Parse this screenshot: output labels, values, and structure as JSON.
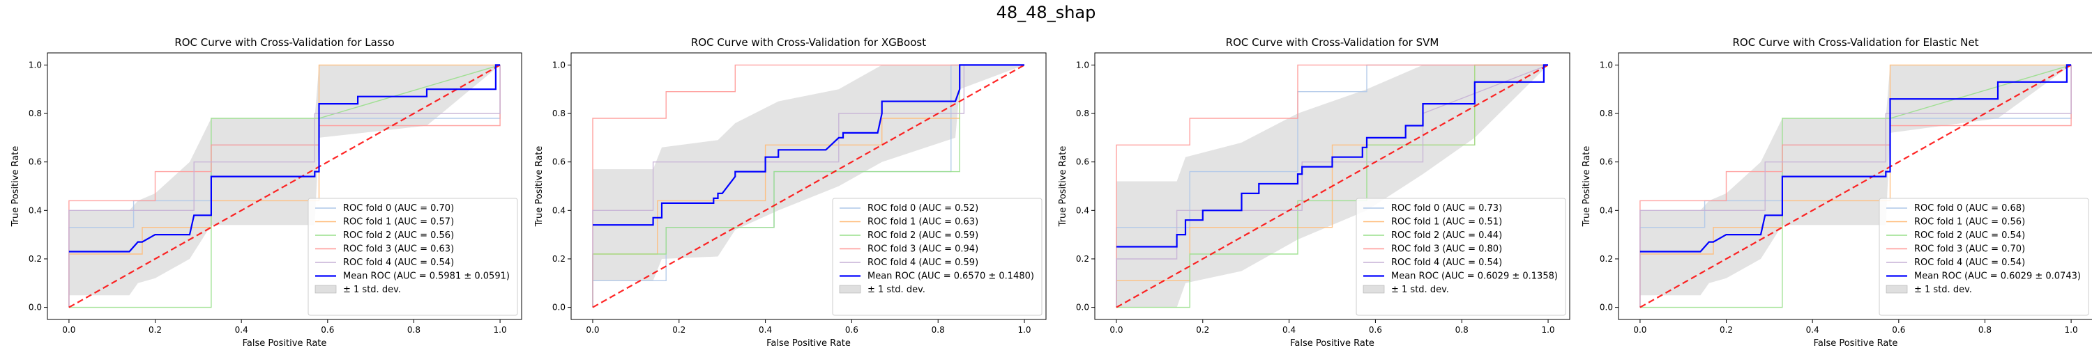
{
  "figure": {
    "title": "48_48_shap"
  },
  "chart_data": [
    {
      "type": "line",
      "title": "ROC Curve with Cross-Validation for Lasso",
      "xlabel": "False Positive Rate",
      "ylabel": "True Positive Rate",
      "xlim": [
        -0.05,
        1.05
      ],
      "ylim": [
        -0.05,
        1.05
      ],
      "xticks": [
        "0.0",
        "0.2",
        "0.4",
        "0.6",
        "0.8",
        "1.0"
      ],
      "yticks": [
        "0.0",
        "0.2",
        "0.4",
        "0.6",
        "0.8",
        "1.0"
      ],
      "legend_position": "lower right",
      "folds": [
        {
          "name": "ROC fold 0 (AUC = 0.70)",
          "color": "#aec7e8",
          "x": [
            0,
            0,
            0.15,
            0.15,
            0.33,
            0.33,
            0.58,
            0.58,
            1.0,
            1.0
          ],
          "y": [
            0,
            0.33,
            0.33,
            0.44,
            0.44,
            0.67,
            0.67,
            0.78,
            0.78,
            1.0
          ]
        },
        {
          "name": "ROC fold 1 (AUC = 0.57)",
          "color": "#ffbb78",
          "x": [
            0,
            0,
            0.17,
            0.17,
            0.33,
            0.33,
            0.58,
            0.58,
            1.0,
            1.0
          ],
          "y": [
            0,
            0.22,
            0.22,
            0.33,
            0.33,
            0.44,
            0.44,
            1.0,
            1.0,
            1.0
          ]
        },
        {
          "name": "ROC fold 2 (AUC = 0.56)",
          "color": "#98df8a",
          "x": [
            0,
            0,
            0.33,
            0.33,
            0.58,
            0.58,
            1.0
          ],
          "y": [
            0,
            0,
            0,
            0.78,
            0.78,
            0.78,
            1.0
          ]
        },
        {
          "name": "ROC fold 3 (AUC = 0.63)",
          "color": "#ff9896",
          "x": [
            0,
            0,
            0.2,
            0.2,
            0.33,
            0.33,
            0.58,
            0.58,
            1.0,
            1.0
          ],
          "y": [
            0,
            0.44,
            0.44,
            0.56,
            0.56,
            0.67,
            0.67,
            0.75,
            0.75,
            1.0
          ]
        },
        {
          "name": "ROC fold 4 (AUC = 0.54)",
          "color": "#c5b0d5",
          "x": [
            0,
            0,
            0.15,
            0.15,
            0.29,
            0.29,
            0.57,
            0.57,
            1.0,
            1.0
          ],
          "y": [
            0,
            0.4,
            0.4,
            0.4,
            0.4,
            0.6,
            0.6,
            0.8,
            0.8,
            1.0
          ]
        }
      ],
      "mean": {
        "name": "Mean ROC (AUC = 0.5981 ± 0.0591)",
        "color": "#0000ff",
        "x": [
          0,
          0.14,
          0.16,
          0.17,
          0.2,
          0.28,
          0.29,
          0.33,
          0.33,
          0.57,
          0.57,
          0.58,
          0.58,
          0.67,
          0.67,
          0.83,
          0.83,
          0.99,
          0.99,
          1.0
        ],
        "y": [
          0.23,
          0.23,
          0.27,
          0.27,
          0.3,
          0.3,
          0.38,
          0.38,
          0.54,
          0.54,
          0.56,
          0.56,
          0.84,
          0.84,
          0.87,
          0.87,
          0.9,
          0.9,
          1.0,
          1.0
        ]
      },
      "std_band": {
        "name": "± 1 std. dev.",
        "color": "#b0b0b0",
        "x": [
          0,
          0.14,
          0.16,
          0.2,
          0.28,
          0.33,
          0.57,
          0.58,
          0.83,
          1.0
        ],
        "upper": [
          0.4,
          0.4,
          0.44,
          0.47,
          0.6,
          0.78,
          0.78,
          1.0,
          1.0,
          1.0
        ],
        "lower": [
          0.05,
          0.05,
          0.1,
          0.12,
          0.2,
          0.34,
          0.34,
          0.7,
          0.75,
          1.0
        ]
      },
      "chance": {
        "color": "#ff0000",
        "x": [
          0,
          1
        ],
        "y": [
          0,
          1
        ]
      }
    },
    {
      "type": "line",
      "title": "ROC Curve with Cross-Validation for XGBoost",
      "xlabel": "False Positive Rate",
      "ylabel": "True Positive Rate",
      "xlim": [
        -0.05,
        1.05
      ],
      "ylim": [
        -0.05,
        1.05
      ],
      "xticks": [
        "0.0",
        "0.2",
        "0.4",
        "0.6",
        "0.8",
        "1.0"
      ],
      "yticks": [
        "0.0",
        "0.2",
        "0.4",
        "0.6",
        "0.8",
        "1.0"
      ],
      "legend_position": "lower right",
      "folds": [
        {
          "name": "ROC fold 0 (AUC = 0.52)",
          "color": "#aec7e8",
          "x": [
            0,
            0,
            0.17,
            0.17,
            0.42,
            0.42,
            0.83,
            0.83,
            1.0
          ],
          "y": [
            0,
            0.11,
            0.11,
            0.33,
            0.33,
            0.56,
            0.56,
            1.0,
            1.0
          ]
        },
        {
          "name": "ROC fold 1 (AUC = 0.63)",
          "color": "#ffbb78",
          "x": [
            0,
            0,
            0.15,
            0.15,
            0.4,
            0.4,
            0.67,
            0.67,
            0.85,
            0.85,
            1.0
          ],
          "y": [
            0,
            0.22,
            0.22,
            0.44,
            0.44,
            0.67,
            0.67,
            0.78,
            0.78,
            1.0,
            1.0
          ]
        },
        {
          "name": "ROC fold 2 (AUC = 0.59)",
          "color": "#98df8a",
          "x": [
            0,
            0,
            0.17,
            0.17,
            0.42,
            0.42,
            0.85,
            0.85,
            1.0
          ],
          "y": [
            0,
            0.22,
            0.22,
            0.33,
            0.33,
            0.56,
            0.56,
            1.0,
            1.0
          ]
        },
        {
          "name": "ROC fold 3 (AUC = 0.94)",
          "color": "#ff9896",
          "x": [
            0,
            0,
            0.17,
            0.17,
            0.33,
            0.33,
            1.0
          ],
          "y": [
            0,
            0.78,
            0.78,
            0.89,
            0.89,
            1.0,
            1.0
          ]
        },
        {
          "name": "ROC fold 4 (AUC = 0.59)",
          "color": "#c5b0d5",
          "x": [
            0,
            0,
            0.14,
            0.14,
            0.43,
            0.43,
            0.57,
            0.57,
            0.86,
            0.86,
            1.0
          ],
          "y": [
            0,
            0.4,
            0.4,
            0.6,
            0.6,
            0.6,
            0.6,
            0.8,
            0.8,
            1.0,
            1.0
          ]
        }
      ],
      "mean": {
        "name": "Mean ROC (AUC = 0.6570 ± 0.1480)",
        "color": "#0000ff",
        "x": [
          0,
          0.14,
          0.14,
          0.16,
          0.16,
          0.28,
          0.28,
          0.29,
          0.29,
          0.3,
          0.33,
          0.33,
          0.4,
          0.4,
          0.43,
          0.43,
          0.54,
          0.57,
          0.58,
          0.58,
          0.66,
          0.67,
          0.67,
          0.84,
          0.85,
          0.85,
          1.0
        ],
        "y": [
          0.34,
          0.34,
          0.37,
          0.37,
          0.43,
          0.43,
          0.45,
          0.45,
          0.47,
          0.47,
          0.54,
          0.56,
          0.56,
          0.62,
          0.62,
          0.65,
          0.65,
          0.7,
          0.7,
          0.72,
          0.72,
          0.8,
          0.85,
          0.85,
          0.9,
          1.0,
          1.0
        ]
      },
      "std_band": {
        "name": "± 1 std. dev.",
        "color": "#b0b0b0",
        "x": [
          0,
          0.14,
          0.16,
          0.29,
          0.33,
          0.43,
          0.57,
          0.67,
          0.84,
          0.85,
          1.0
        ],
        "upper": [
          0.57,
          0.57,
          0.66,
          0.69,
          0.76,
          0.85,
          0.9,
          1.0,
          1.0,
          1.0,
          1.0
        ],
        "lower": [
          0.11,
          0.11,
          0.2,
          0.21,
          0.32,
          0.4,
          0.5,
          0.6,
          0.7,
          0.9,
          1.0
        ]
      },
      "chance": {
        "color": "#ff0000",
        "x": [
          0,
          1
        ],
        "y": [
          0,
          1
        ]
      }
    },
    {
      "type": "line",
      "title": "ROC Curve with Cross-Validation for SVM",
      "xlabel": "False Positive Rate",
      "ylabel": "True Positive Rate",
      "xlim": [
        -0.05,
        1.05
      ],
      "ylim": [
        -0.05,
        1.05
      ],
      "xticks": [
        "0.0",
        "0.2",
        "0.4",
        "0.6",
        "0.8",
        "1.0"
      ],
      "yticks": [
        "0.0",
        "0.2",
        "0.4",
        "0.6",
        "0.8",
        "1.0"
      ],
      "legend_position": "lower right",
      "folds": [
        {
          "name": "ROC fold 0 (AUC = 0.73)",
          "color": "#aec7e8",
          "x": [
            0,
            0,
            0.17,
            0.17,
            0.42,
            0.42,
            0.58,
            0.58,
            1.0
          ],
          "y": [
            0,
            0.33,
            0.33,
            0.56,
            0.56,
            0.89,
            0.89,
            1.0,
            1.0
          ]
        },
        {
          "name": "ROC fold 1 (AUC = 0.51)",
          "color": "#ffbb78",
          "x": [
            0,
            0,
            0.17,
            0.17,
            0.5,
            0.5,
            0.83,
            0.83,
            1.0
          ],
          "y": [
            0,
            0.11,
            0.11,
            0.33,
            0.33,
            0.67,
            0.67,
            1.0,
            1.0
          ]
        },
        {
          "name": "ROC fold 2 (AUC = 0.44)",
          "color": "#98df8a",
          "x": [
            0,
            0.17,
            0.17,
            0.42,
            0.42,
            0.58,
            0.58,
            0.83,
            0.83,
            1.0
          ],
          "y": [
            0,
            0,
            0.22,
            0.22,
            0.44,
            0.44,
            0.67,
            0.67,
            1.0,
            1.0
          ]
        },
        {
          "name": "ROC fold 3 (AUC = 0.80)",
          "color": "#ff9896",
          "x": [
            0,
            0,
            0.17,
            0.17,
            0.42,
            0.42,
            1.0
          ],
          "y": [
            0,
            0.67,
            0.67,
            0.78,
            0.78,
            1.0,
            1.0
          ]
        },
        {
          "name": "ROC fold 4 (AUC = 0.54)",
          "color": "#c5b0d5",
          "x": [
            0,
            0,
            0.14,
            0.14,
            0.43,
            0.43,
            0.71,
            0.71,
            1.0
          ],
          "y": [
            0,
            0.2,
            0.2,
            0.4,
            0.4,
            0.6,
            0.6,
            0.8,
            1.0
          ]
        }
      ],
      "mean": {
        "name": "Mean ROC (AUC = 0.6029 ± 0.1358)",
        "color": "#0000ff",
        "x": [
          0,
          0.14,
          0.14,
          0.16,
          0.16,
          0.2,
          0.2,
          0.29,
          0.29,
          0.33,
          0.33,
          0.42,
          0.42,
          0.43,
          0.43,
          0.5,
          0.5,
          0.57,
          0.57,
          0.58,
          0.58,
          0.67,
          0.67,
          0.71,
          0.71,
          0.83,
          0.83,
          0.99,
          0.99,
          1.0
        ],
        "y": [
          0.25,
          0.25,
          0.3,
          0.3,
          0.36,
          0.36,
          0.4,
          0.4,
          0.47,
          0.47,
          0.51,
          0.51,
          0.55,
          0.55,
          0.58,
          0.58,
          0.62,
          0.62,
          0.66,
          0.66,
          0.7,
          0.7,
          0.75,
          0.75,
          0.84,
          0.84,
          0.93,
          0.93,
          1.0,
          1.0
        ]
      },
      "std_band": {
        "name": "± 1 std. dev.",
        "color": "#b0b0b0",
        "x": [
          0,
          0.14,
          0.16,
          0.29,
          0.42,
          0.58,
          0.71,
          0.83,
          1.0
        ],
        "upper": [
          0.52,
          0.52,
          0.62,
          0.68,
          0.8,
          0.9,
          1.0,
          1.0,
          1.0
        ],
        "lower": [
          0.0,
          0.0,
          0.1,
          0.15,
          0.28,
          0.4,
          0.55,
          0.7,
          1.0
        ]
      },
      "chance": {
        "color": "#ff0000",
        "x": [
          0,
          1
        ],
        "y": [
          0,
          1
        ]
      }
    },
    {
      "type": "line",
      "title": "ROC Curve with Cross-Validation for Elastic Net",
      "xlabel": "False Positive Rate",
      "ylabel": "True Positive Rate",
      "xlim": [
        -0.05,
        1.05
      ],
      "ylim": [
        -0.05,
        1.05
      ],
      "xticks": [
        "0.0",
        "0.2",
        "0.4",
        "0.6",
        "0.8",
        "1.0"
      ],
      "yticks": [
        "0.0",
        "0.2",
        "0.4",
        "0.6",
        "0.8",
        "1.0"
      ],
      "legend_position": "lower right",
      "folds": [
        {
          "name": "ROC fold 0 (AUC = 0.68)",
          "color": "#aec7e8",
          "x": [
            0,
            0,
            0.15,
            0.15,
            0.33,
            0.33,
            0.58,
            0.58,
            1.0,
            1.0
          ],
          "y": [
            0,
            0.33,
            0.33,
            0.44,
            0.44,
            0.67,
            0.67,
            0.78,
            0.78,
            1.0
          ]
        },
        {
          "name": "ROC fold 1 (AUC = 0.56)",
          "color": "#ffbb78",
          "x": [
            0,
            0,
            0.17,
            0.17,
            0.33,
            0.33,
            0.58,
            0.58,
            1.0
          ],
          "y": [
            0,
            0.22,
            0.22,
            0.33,
            0.33,
            0.44,
            0.44,
            1.0,
            1.0
          ]
        },
        {
          "name": "ROC fold 2 (AUC = 0.54)",
          "color": "#98df8a",
          "x": [
            0,
            0.33,
            0.33,
            0.58,
            0.58,
            1.0
          ],
          "y": [
            0,
            0,
            0.78,
            0.78,
            0.78,
            1.0
          ]
        },
        {
          "name": "ROC fold 3 (AUC = 0.70)",
          "color": "#ff9896",
          "x": [
            0,
            0,
            0.2,
            0.2,
            0.33,
            0.33,
            0.58,
            0.58,
            1.0,
            1.0
          ],
          "y": [
            0,
            0.44,
            0.44,
            0.56,
            0.56,
            0.67,
            0.67,
            0.75,
            0.75,
            1.0
          ]
        },
        {
          "name": "ROC fold 4 (AUC = 0.54)",
          "color": "#c5b0d5",
          "x": [
            0,
            0,
            0.15,
            0.15,
            0.29,
            0.29,
            0.57,
            0.57,
            1.0,
            1.0
          ],
          "y": [
            0,
            0.4,
            0.4,
            0.4,
            0.4,
            0.6,
            0.6,
            0.8,
            0.8,
            1.0
          ]
        }
      ],
      "mean": {
        "name": "Mean ROC (AUC = 0.6029 ± 0.0743)",
        "color": "#0000ff",
        "x": [
          0,
          0.14,
          0.16,
          0.17,
          0.2,
          0.28,
          0.29,
          0.33,
          0.33,
          0.57,
          0.57,
          0.58,
          0.58,
          0.67,
          0.67,
          0.83,
          0.83,
          0.99,
          0.99,
          1.0
        ],
        "y": [
          0.23,
          0.23,
          0.27,
          0.27,
          0.3,
          0.3,
          0.38,
          0.38,
          0.54,
          0.54,
          0.56,
          0.56,
          0.86,
          0.86,
          0.86,
          0.86,
          0.93,
          0.93,
          1.0,
          1.0
        ]
      },
      "std_band": {
        "name": "± 1 std. dev.",
        "color": "#b0b0b0",
        "x": [
          0,
          0.14,
          0.16,
          0.2,
          0.28,
          0.33,
          0.57,
          0.58,
          0.83,
          1.0
        ],
        "upper": [
          0.4,
          0.4,
          0.44,
          0.47,
          0.6,
          0.78,
          0.78,
          1.0,
          1.0,
          1.0
        ],
        "lower": [
          0.05,
          0.05,
          0.1,
          0.12,
          0.2,
          0.34,
          0.34,
          0.72,
          0.78,
          1.0
        ]
      },
      "chance": {
        "color": "#ff0000",
        "x": [
          0,
          1
        ],
        "y": [
          0,
          1
        ]
      }
    }
  ]
}
